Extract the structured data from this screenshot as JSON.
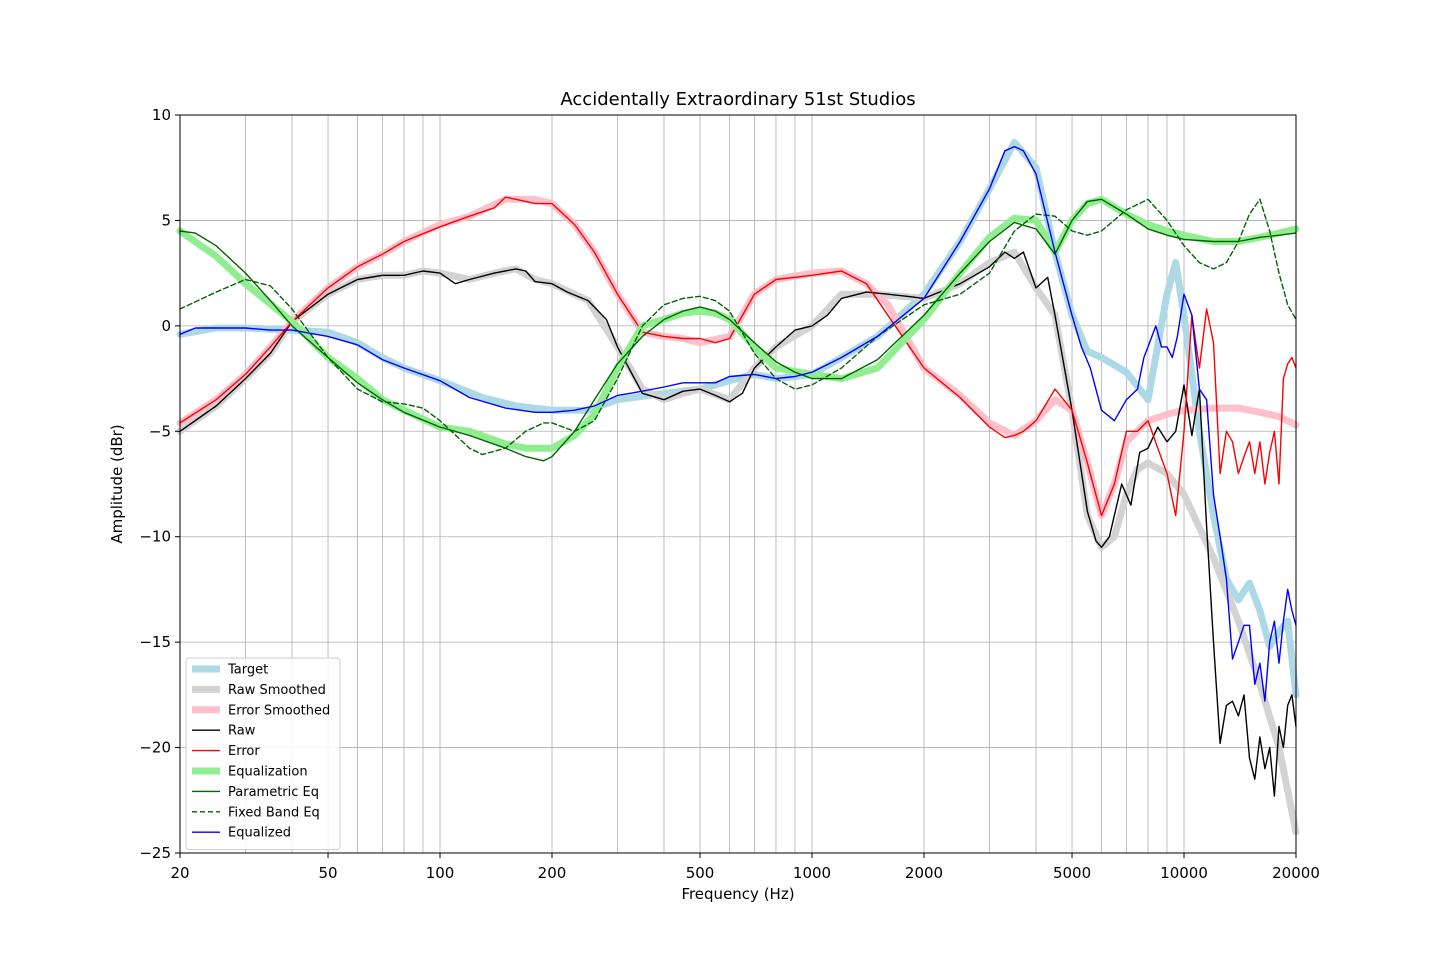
{
  "chart_data": {
    "type": "line",
    "title": "Accidentally Extraordinary 51st Studios",
    "xlabel": "Frequency (Hz)",
    "ylabel": "Amplitude (dBr)",
    "xscale": "log",
    "xlim": [
      20,
      20000
    ],
    "ylim": [
      -25,
      10
    ],
    "x_ticks": [
      20,
      50,
      100,
      200,
      500,
      1000,
      2000,
      5000,
      10000,
      20000
    ],
    "x_tick_labels": [
      "20",
      "50",
      "100",
      "200",
      "500",
      "1000",
      "2000",
      "5000",
      "10000",
      "20000"
    ],
    "y_ticks": [
      10,
      5,
      0,
      -5,
      -10,
      -15,
      -20,
      -25
    ],
    "y_tick_labels": [
      "10",
      "5",
      "0",
      "−5",
      "−10",
      "−15",
      "−20",
      "−25"
    ],
    "grid": true,
    "legend_position": "lower-left",
    "series": [
      {
        "name": "Target",
        "color": "#add8e6",
        "style": "thick",
        "x": [
          20,
          25,
          30,
          40,
          50,
          60,
          70,
          80,
          100,
          130,
          160,
          200,
          250,
          300,
          400,
          500,
          600,
          700,
          800,
          900,
          1000,
          1200,
          1500,
          2000,
          2500,
          3000,
          3500,
          4000,
          4500,
          5000,
          5500,
          6000,
          7000,
          8000,
          9000,
          9500,
          10000,
          11000,
          12000,
          13000,
          14000,
          15000,
          16000,
          17000,
          18000,
          19000,
          20000
        ],
        "y": [
          -0.4,
          -0.1,
          -0.1,
          -0.2,
          -0.3,
          -0.8,
          -1.5,
          -2.0,
          -2.6,
          -3.4,
          -3.8,
          -4.0,
          -4.0,
          -3.5,
          -3.2,
          -3.0,
          -2.6,
          -2.3,
          -2.5,
          -2.4,
          -2.3,
          -1.5,
          -0.5,
          1.5,
          4.0,
          6.5,
          8.7,
          7.5,
          3.5,
          0.5,
          -1.2,
          -1.5,
          -2.2,
          -3.5,
          1.5,
          3.0,
          0.5,
          -5.0,
          -9.0,
          -12.0,
          -13.0,
          -12.2,
          -13.5,
          -15.2,
          -14.5,
          -14.0,
          -17.5
        ]
      },
      {
        "name": "Raw Smoothed",
        "color": "#d3d3d3",
        "style": "thick",
        "x": [
          20,
          25,
          30,
          35,
          40,
          50,
          60,
          70,
          80,
          90,
          100,
          120,
          140,
          160,
          180,
          200,
          250,
          300,
          350,
          400,
          450,
          500,
          600,
          700,
          800,
          1000,
          1200,
          1500,
          2000,
          2500,
          3000,
          3500,
          4000,
          4500,
          5000,
          5500,
          6000,
          6500,
          7000,
          7500,
          8000,
          9000,
          10000,
          12000,
          14000,
          16000,
          18000,
          20000
        ],
        "y": [
          -5.0,
          -3.8,
          -2.5,
          -1.3,
          0.2,
          1.5,
          2.2,
          2.4,
          2.4,
          2.6,
          2.5,
          2.2,
          2.5,
          2.7,
          2.2,
          2.0,
          1.2,
          -1.0,
          -3.0,
          -3.5,
          -3.2,
          -3.0,
          -3.5,
          -2.0,
          -1.0,
          0.0,
          1.5,
          1.5,
          1.3,
          2.0,
          3.0,
          3.5,
          1.8,
          0.5,
          -4.0,
          -9.0,
          -10.5,
          -10.0,
          -8.0,
          -6.8,
          -6.5,
          -7.0,
          -8.0,
          -11.0,
          -14.0,
          -17.0,
          -20.0,
          -24.0
        ]
      },
      {
        "name": "Error Smoothed",
        "color": "#ffc0cb",
        "style": "thick",
        "x": [
          20,
          25,
          30,
          35,
          40,
          50,
          60,
          70,
          80,
          100,
          120,
          150,
          180,
          200,
          230,
          260,
          300,
          350,
          400,
          450,
          500,
          600,
          700,
          800,
          1000,
          1200,
          1400,
          1600,
          2000,
          2500,
          3000,
          3500,
          4000,
          4500,
          5000,
          5500,
          6000,
          6500,
          7000,
          8000,
          9000,
          10000,
          12000,
          14000,
          16000,
          18000,
          20000
        ],
        "y": [
          -4.6,
          -3.5,
          -2.3,
          -1.0,
          0.2,
          1.8,
          2.8,
          3.4,
          4.0,
          4.8,
          5.2,
          6.0,
          6.0,
          5.8,
          4.8,
          3.5,
          1.5,
          -0.3,
          -0.5,
          -0.6,
          -0.8,
          -0.5,
          1.5,
          2.2,
          2.5,
          2.6,
          2.0,
          1.0,
          -2.0,
          -3.3,
          -4.6,
          -5.2,
          -4.5,
          -3.5,
          -4.0,
          -6.5,
          -9.0,
          -7.5,
          -5.5,
          -4.5,
          -4.2,
          -4.0,
          -3.9,
          -3.9,
          -4.1,
          -4.3,
          -4.7
        ]
      },
      {
        "name": "Raw",
        "color": "#000000",
        "style": "thin",
        "x": [
          20,
          25,
          30,
          35,
          40,
          50,
          60,
          70,
          80,
          90,
          100,
          110,
          120,
          140,
          160,
          170,
          180,
          200,
          220,
          250,
          280,
          300,
          350,
          400,
          450,
          500,
          550,
          600,
          650,
          700,
          800,
          900,
          1000,
          1100,
          1200,
          1400,
          1600,
          1800,
          2000,
          2200,
          2500,
          3000,
          3300,
          3500,
          3700,
          4000,
          4300,
          4500,
          5000,
          5500,
          5800,
          6000,
          6300,
          6800,
          7200,
          7600,
          8000,
          8500,
          9000,
          9500,
          10000,
          10500,
          11000,
          11500,
          12000,
          12500,
          13000,
          13500,
          14000,
          14500,
          15000,
          15500,
          16000,
          16500,
          17000,
          17500,
          18000,
          18500,
          19000,
          19500,
          20000
        ],
        "y": [
          -5.0,
          -3.8,
          -2.5,
          -1.3,
          0.2,
          1.5,
          2.2,
          2.4,
          2.4,
          2.6,
          2.5,
          2.0,
          2.2,
          2.5,
          2.7,
          2.6,
          2.1,
          2.0,
          1.6,
          1.2,
          0.3,
          -1.0,
          -3.2,
          -3.5,
          -3.1,
          -3.0,
          -3.3,
          -3.6,
          -3.2,
          -2.0,
          -1.0,
          -0.2,
          0.0,
          0.5,
          1.3,
          1.6,
          1.5,
          1.4,
          1.3,
          1.6,
          2.0,
          2.8,
          3.5,
          3.2,
          3.5,
          1.8,
          2.3,
          0.5,
          -4.0,
          -8.8,
          -10.2,
          -10.5,
          -10.0,
          -7.5,
          -8.5,
          -6.0,
          -5.8,
          -4.8,
          -5.5,
          -5.0,
          -2.8,
          -5.2,
          -3.0,
          -9.5,
          -15.0,
          -19.8,
          -18.0,
          -17.8,
          -18.5,
          -17.5,
          -20.5,
          -21.5,
          -19.5,
          -21.0,
          -20.0,
          -22.3,
          -19.0,
          -20.0,
          -18.0,
          -17.5,
          -19.0
        ]
      },
      {
        "name": "Error",
        "color": "#ff0000",
        "style": "thin",
        "x": [
          20,
          25,
          30,
          35,
          40,
          50,
          60,
          70,
          80,
          100,
          120,
          140,
          150,
          160,
          180,
          200,
          230,
          260,
          300,
          350,
          400,
          450,
          500,
          550,
          600,
          700,
          800,
          1000,
          1200,
          1400,
          1600,
          2000,
          2500,
          3000,
          3300,
          3500,
          3700,
          4000,
          4500,
          5000,
          5500,
          6000,
          6500,
          7000,
          7500,
          8000,
          8500,
          9000,
          9500,
          10000,
          10500,
          11000,
          11500,
          12000,
          12500,
          13000,
          13500,
          14000,
          14500,
          15000,
          15500,
          16000,
          16500,
          17000,
          17500,
          18000,
          18500,
          19000,
          19500,
          20000
        ],
        "y": [
          -4.6,
          -3.5,
          -2.3,
          -1.0,
          0.2,
          1.8,
          2.8,
          3.4,
          4.0,
          4.7,
          5.2,
          5.6,
          6.1,
          6.0,
          5.8,
          5.8,
          4.8,
          3.5,
          1.5,
          -0.3,
          -0.5,
          -0.6,
          -0.6,
          -0.8,
          -0.6,
          1.5,
          2.2,
          2.4,
          2.6,
          2.0,
          0.5,
          -2.0,
          -3.4,
          -4.8,
          -5.3,
          -5.2,
          -5.0,
          -4.5,
          -3.0,
          -4.0,
          -6.5,
          -9.0,
          -7.5,
          -5.0,
          -5.0,
          -4.5,
          -5.8,
          -7.0,
          -9.0,
          -5.0,
          0.5,
          -2.0,
          0.8,
          -0.8,
          -7.0,
          -5.0,
          -5.5,
          -7.0,
          -6.2,
          -5.5,
          -7.0,
          -5.5,
          -7.5,
          -6.0,
          -5.0,
          -7.5,
          -2.5,
          -1.8,
          -1.5,
          -2.0
        ]
      },
      {
        "name": "Equalization",
        "color": "#90ee90",
        "style": "thick",
        "x": [
          20,
          25,
          30,
          40,
          50,
          60,
          70,
          80,
          100,
          120,
          150,
          170,
          200,
          230,
          260,
          300,
          350,
          400,
          450,
          500,
          550,
          600,
          700,
          800,
          1000,
          1200,
          1500,
          2000,
          2500,
          3000,
          3500,
          4000,
          4500,
          5000,
          5500,
          6000,
          7000,
          8000,
          9000,
          10000,
          12000,
          14000,
          16000,
          18000,
          20000
        ],
        "y": [
          4.5,
          3.3,
          2.0,
          0.2,
          -1.5,
          -2.5,
          -3.5,
          -4.0,
          -4.8,
          -5.0,
          -5.6,
          -5.8,
          -5.8,
          -5.2,
          -4.2,
          -2.0,
          0.0,
          0.3,
          0.6,
          0.7,
          0.6,
          0.3,
          -1.0,
          -2.0,
          -2.3,
          -2.5,
          -2.0,
          0.3,
          2.5,
          4.2,
          5.1,
          5.0,
          3.5,
          5.0,
          5.8,
          6.0,
          5.3,
          4.8,
          4.5,
          4.3,
          4.0,
          4.0,
          4.2,
          4.4,
          4.6
        ]
      },
      {
        "name": "Parametric Eq",
        "color": "#006400",
        "style": "thin",
        "x": [
          20,
          22,
          25,
          30,
          35,
          40,
          50,
          60,
          70,
          80,
          100,
          120,
          150,
          170,
          190,
          200,
          230,
          260,
          300,
          350,
          400,
          450,
          500,
          550,
          600,
          700,
          800,
          900,
          1000,
          1200,
          1500,
          2000,
          2500,
          3000,
          3500,
          4000,
          4500,
          5000,
          5500,
          6000,
          7000,
          8000,
          9000,
          10000,
          12000,
          14000,
          16000,
          18000,
          20000
        ],
        "y": [
          4.5,
          4.4,
          3.8,
          2.5,
          1.2,
          0.0,
          -1.5,
          -2.7,
          -3.5,
          -4.1,
          -4.8,
          -5.2,
          -5.8,
          -6.2,
          -6.4,
          -6.2,
          -5.0,
          -3.5,
          -1.8,
          -0.5,
          0.3,
          0.7,
          0.9,
          0.7,
          0.3,
          -0.8,
          -1.7,
          -2.2,
          -2.5,
          -2.5,
          -1.6,
          0.5,
          2.5,
          4.0,
          4.9,
          4.6,
          3.4,
          5.0,
          5.9,
          6.0,
          5.3,
          4.6,
          4.3,
          4.1,
          4.0,
          4.0,
          4.2,
          4.3,
          4.4
        ]
      },
      {
        "name": "Fixed Band Eq",
        "color": "#006400",
        "style": "dashed",
        "x": [
          20,
          25,
          30,
          35,
          40,
          50,
          60,
          70,
          80,
          90,
          100,
          120,
          130,
          150,
          170,
          190,
          200,
          230,
          260,
          300,
          350,
          400,
          450,
          500,
          550,
          600,
          700,
          800,
          900,
          1000,
          1200,
          1500,
          2000,
          2500,
          3000,
          3500,
          4000,
          4500,
          5000,
          5500,
          6000,
          7000,
          8000,
          9000,
          10000,
          11000,
          12000,
          13000,
          14000,
          15000,
          16000,
          17000,
          18000,
          19000,
          20000
        ],
        "y": [
          0.8,
          1.6,
          2.2,
          1.9,
          0.8,
          -1.5,
          -3.0,
          -3.6,
          -3.7,
          -3.9,
          -4.5,
          -5.8,
          -6.1,
          -5.8,
          -5.0,
          -4.6,
          -4.6,
          -5.0,
          -4.5,
          -2.5,
          0.0,
          1.0,
          1.3,
          1.4,
          1.2,
          0.7,
          -1.3,
          -2.5,
          -3.0,
          -2.8,
          -2.0,
          -0.5,
          1.0,
          1.5,
          2.5,
          4.5,
          5.3,
          5.2,
          4.5,
          4.3,
          4.5,
          5.5,
          6.0,
          5.0,
          3.8,
          3.0,
          2.7,
          3.0,
          4.0,
          5.3,
          6.0,
          4.5,
          2.5,
          1.0,
          0.3
        ]
      },
      {
        "name": "Equalized",
        "color": "#0000ff",
        "style": "thin",
        "x": [
          20,
          22,
          25,
          30,
          35,
          40,
          50,
          60,
          70,
          80,
          100,
          120,
          150,
          180,
          200,
          230,
          260,
          300,
          350,
          400,
          450,
          500,
          550,
          600,
          700,
          800,
          900,
          1000,
          1200,
          1500,
          2000,
          2500,
          3000,
          3300,
          3500,
          3700,
          4000,
          4500,
          5000,
          5300,
          5600,
          6000,
          6500,
          7000,
          7500,
          7800,
          8000,
          8400,
          8700,
          9000,
          9300,
          9600,
          10000,
          10500,
          11000,
          11500,
          12000,
          12500,
          13000,
          13500,
          14000,
          14500,
          15000,
          15500,
          16000,
          16500,
          17000,
          17500,
          18000,
          18500,
          19000,
          19500,
          20000
        ],
        "y": [
          -0.4,
          -0.1,
          -0.1,
          -0.1,
          -0.2,
          -0.2,
          -0.5,
          -0.9,
          -1.6,
          -2.0,
          -2.6,
          -3.4,
          -3.9,
          -4.1,
          -4.1,
          -4.0,
          -3.8,
          -3.3,
          -3.1,
          -2.9,
          -2.7,
          -2.7,
          -2.7,
          -2.4,
          -2.3,
          -2.5,
          -2.4,
          -2.2,
          -1.5,
          -0.5,
          1.3,
          4.0,
          6.5,
          8.3,
          8.5,
          8.3,
          7.2,
          3.5,
          0.5,
          -1.0,
          -2.0,
          -4.0,
          -4.5,
          -3.5,
          -3.0,
          -1.5,
          -1.0,
          0.0,
          -1.0,
          -1.0,
          -1.5,
          -0.5,
          1.5,
          0.5,
          -3.0,
          -3.5,
          -8.0,
          -10.0,
          -12.0,
          -15.8,
          -15.0,
          -14.2,
          -14.2,
          -17.0,
          -16.0,
          -17.8,
          -15.0,
          -14.0,
          -16.0,
          -14.0,
          -12.5,
          -13.5,
          -14.2
        ]
      }
    ]
  }
}
